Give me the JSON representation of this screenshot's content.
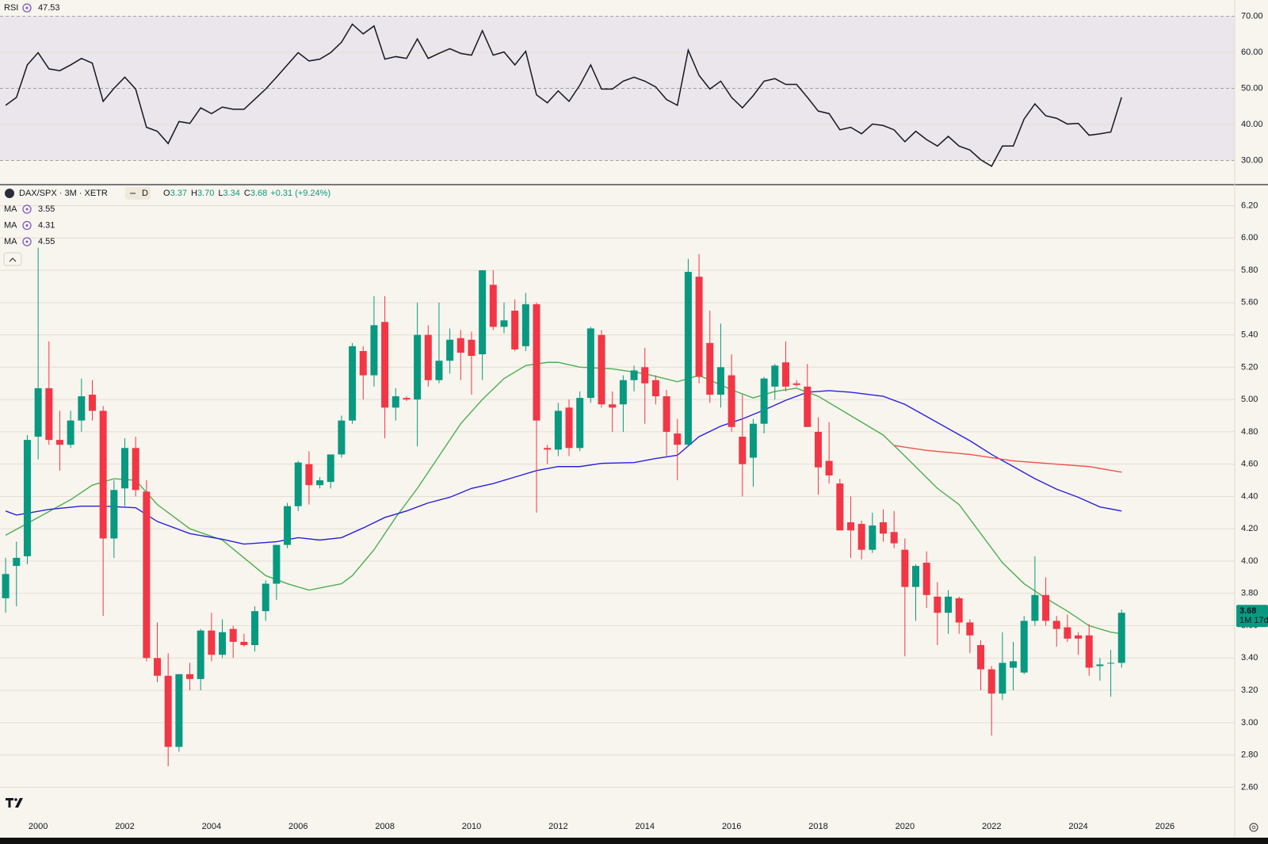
{
  "chart_data": [
    {
      "type": "line",
      "series": [
        {
          "name": "RSI",
          "color": "#131722",
          "values": [
            45.3,
            47.5,
            56.5,
            59.9,
            55.4,
            54.9,
            56.5,
            58.3,
            57,
            46.4,
            50,
            53.1,
            49.8,
            39.2,
            38.1,
            34.7,
            40.8,
            40.3,
            44.6,
            43,
            44.8,
            44.2,
            44.2,
            47,
            49.8,
            53.1,
            56.5,
            59.9,
            57.6,
            58.1,
            59.9,
            62.8,
            67.8,
            65.1,
            67.3,
            58.1,
            58.8,
            58.3,
            63.7,
            58.3,
            59.7,
            61,
            59.7,
            59.2,
            66,
            59.2,
            60.1,
            56.5,
            60.3,
            48.2,
            46,
            49.3,
            46.4,
            50.9,
            56.5,
            49.8,
            49.8,
            52,
            53.1,
            52,
            50.4,
            46.9,
            45.3,
            60.6,
            53.6,
            49.8,
            52,
            47.5,
            44.6,
            48,
            52,
            52.7,
            51.1,
            51.1,
            47.5,
            43.7,
            43,
            38.5,
            39.2,
            37.4,
            40.1,
            39.7,
            38.5,
            35.2,
            38.1,
            35.8,
            34,
            36.7,
            34,
            32.9,
            30.2,
            28.4,
            34,
            34,
            41.5,
            45.7,
            42.4,
            41.7,
            40.1,
            40.3,
            37,
            37.4,
            37.9,
            47.53
          ]
        }
      ],
      "x": [
        1999.25,
        1999.5,
        1999.75,
        2000,
        2000.25,
        2000.5,
        2000.75,
        2001,
        2001.25,
        2001.5,
        2001.75,
        2002,
        2002.25,
        2002.5,
        2002.75,
        2003,
        2003.25,
        2003.5,
        2003.75,
        2004,
        2004.25,
        2004.5,
        2004.75,
        2005,
        2005.25,
        2005.5,
        2005.75,
        2006,
        2006.25,
        2006.5,
        2006.75,
        2007,
        2007.25,
        2007.5,
        2007.75,
        2008,
        2008.25,
        2008.5,
        2008.75,
        2009,
        2009.25,
        2009.5,
        2009.75,
        2010,
        2010.25,
        2010.5,
        2010.75,
        2011,
        2011.25,
        2011.5,
        2011.75,
        2012,
        2012.25,
        2012.5,
        2012.75,
        2013,
        2013.25,
        2013.5,
        2013.75,
        2014,
        2014.25,
        2014.5,
        2014.75,
        2015,
        2015.25,
        2015.5,
        2015.75,
        2016,
        2016.25,
        2016.5,
        2016.75,
        2017,
        2017.25,
        2017.5,
        2017.75,
        2018,
        2018.25,
        2018.5,
        2018.75,
        2019,
        2019.25,
        2019.5,
        2019.75,
        2020,
        2020.25,
        2020.5,
        2020.75,
        2021,
        2021.25,
        2021.5,
        2021.75,
        2022,
        2022.25,
        2022.5,
        2022.75,
        2023,
        2023.25,
        2023.5,
        2023.75,
        2024,
        2024.25,
        2024.5,
        2024.75,
        2025
      ],
      "xlim": [
        1999.12,
        2027.61
      ],
      "ylim": [
        23.3,
        74.5
      ],
      "yticks": [
        {
          "value": 30,
          "label": "30.00"
        },
        {
          "value": 40,
          "label": "40.00"
        },
        {
          "value": 50,
          "label": "50.00"
        },
        {
          "value": 60,
          "label": "60.00"
        },
        {
          "value": 70,
          "label": "70.00"
        }
      ],
      "band": [
        30,
        70
      ],
      "band_color": "#ebe5ec",
      "grid": true
    },
    {
      "type": "candlestick",
      "title": "DAX/SPX · 3M · XETR",
      "badge": "D",
      "last_labels": [
        {
          "letter": "O",
          "value": "3.37"
        },
        {
          "letter": "H",
          "value": "3.70"
        },
        {
          "letter": "L",
          "value": "3.34"
        },
        {
          "letter": "C",
          "value": "3.68"
        }
      ],
      "change": "+0.31 (+9.24%)",
      "countdown": "1M 17d",
      "up_color": "#089981",
      "down_color": "#f23645",
      "x": [
        1999.25,
        1999.5,
        1999.75,
        2000,
        2000.25,
        2000.5,
        2000.75,
        2001,
        2001.25,
        2001.5,
        2001.75,
        2002,
        2002.25,
        2002.5,
        2002.75,
        2003,
        2003.25,
        2003.5,
        2003.75,
        2004,
        2004.25,
        2004.5,
        2004.75,
        2005,
        2005.25,
        2005.5,
        2005.75,
        2006,
        2006.25,
        2006.5,
        2006.75,
        2007,
        2007.25,
        2007.5,
        2007.75,
        2008,
        2008.25,
        2008.5,
        2008.75,
        2009,
        2009.25,
        2009.5,
        2009.75,
        2010,
        2010.25,
        2010.5,
        2010.75,
        2011,
        2011.25,
        2011.5,
        2011.75,
        2012,
        2012.25,
        2012.5,
        2012.75,
        2013,
        2013.25,
        2013.5,
        2013.75,
        2014,
        2014.25,
        2014.5,
        2014.75,
        2015,
        2015.25,
        2015.5,
        2015.75,
        2016,
        2016.25,
        2016.5,
        2016.75,
        2017,
        2017.25,
        2017.5,
        2017.75,
        2018,
        2018.25,
        2018.5,
        2018.75,
        2019,
        2019.25,
        2019.5,
        2019.75,
        2020,
        2020.25,
        2020.5,
        2020.75,
        2021,
        2021.25,
        2021.5,
        2021.75,
        2022,
        2022.25,
        2022.5,
        2022.75,
        2023,
        2023.25,
        2023.5,
        2023.75,
        2024,
        2024.25,
        2024.5,
        2024.75,
        2025
      ],
      "open": [
        3.77,
        3.97,
        4.03,
        4.77,
        5.07,
        4.75,
        4.72,
        4.87,
        5.03,
        4.93,
        4.14,
        4.45,
        4.7,
        4.43,
        3.4,
        3.29,
        2.85,
        3.3,
        3.27,
        3.57,
        3.42,
        3.58,
        3.5,
        3.48,
        3.69,
        3.86,
        4.1,
        4.34,
        4.6,
        4.47,
        4.49,
        4.66,
        4.87,
        5.3,
        5.15,
        5.48,
        4.95,
        5.01,
        5.0,
        5.4,
        5.12,
        5.24,
        5.38,
        5.37,
        5.28,
        5.71,
        5.45,
        5.55,
        5.33,
        5.59,
        4.7,
        4.69,
        4.95,
        4.7,
        5.01,
        5.4,
        4.97,
        4.97,
        5.12,
        5.2,
        5.12,
        5.02,
        4.79,
        4.72,
        5.76,
        5.35,
        5.03,
        5.15,
        4.77,
        4.64,
        4.85,
        5.08,
        5.23,
        5.1,
        5.08,
        4.8,
        4.62,
        4.48,
        4.24,
        4.23,
        4.07,
        4.24,
        4.18,
        4.07,
        3.84,
        3.99,
        3.78,
        3.68,
        3.77,
        3.62,
        3.48,
        3.33,
        3.18,
        3.34,
        3.31,
        3.63,
        3.79,
        3.63,
        3.59,
        3.54,
        3.54,
        3.35,
        3.37,
        3.37
      ],
      "high": [
        4.02,
        4.12,
        4.78,
        5.94,
        5.36,
        4.93,
        4.93,
        5.13,
        5.12,
        4.96,
        4.5,
        4.76,
        4.77,
        4.5,
        3.62,
        3.43,
        3.3,
        3.37,
        3.58,
        3.68,
        3.64,
        3.6,
        3.55,
        3.72,
        3.88,
        4.1,
        4.36,
        4.62,
        4.68,
        4.52,
        4.66,
        4.9,
        5.35,
        5.33,
        5.64,
        5.64,
        5.07,
        5.02,
        5.6,
        5.46,
        5.6,
        5.44,
        5.43,
        5.42,
        5.8,
        5.8,
        5.6,
        5.62,
        5.66,
        5.6,
        4.72,
        4.98,
        5.0,
        5.05,
        5.45,
        5.43,
        5.05,
        5.15,
        5.21,
        5.32,
        5.15,
        5.06,
        4.88,
        5.87,
        5.9,
        5.55,
        5.47,
        5.28,
        5.03,
        4.88,
        5.14,
        5.22,
        5.36,
        5.12,
        5.22,
        4.89,
        4.86,
        4.51,
        4.4,
        4.25,
        4.3,
        4.32,
        4.31,
        4.14,
        3.98,
        4.06,
        3.87,
        3.82,
        3.78,
        3.64,
        3.51,
        3.35,
        3.56,
        3.5,
        3.66,
        4.03,
        3.9,
        3.66,
        3.67,
        3.56,
        3.61,
        3.4,
        3.45,
        3.7
      ],
      "low": [
        3.68,
        3.72,
        3.98,
        4.63,
        4.72,
        4.56,
        4.7,
        4.8,
        4.87,
        3.66,
        4.02,
        4.34,
        4.4,
        3.38,
        3.25,
        2.73,
        2.82,
        3.2,
        3.2,
        3.38,
        3.4,
        3.4,
        3.47,
        3.44,
        3.63,
        3.76,
        4.08,
        4.31,
        4.35,
        4.45,
        4.45,
        4.64,
        4.85,
        5.0,
        5.08,
        4.76,
        4.87,
        4.99,
        4.71,
        5.08,
        5.1,
        5.16,
        5.12,
        5.03,
        5.12,
        5.43,
        5.41,
        5.3,
        5.3,
        4.3,
        4.6,
        4.65,
        4.65,
        4.68,
        4.98,
        4.95,
        4.8,
        4.8,
        5.05,
        4.85,
        4.97,
        4.65,
        4.5,
        4.72,
        5.1,
        4.98,
        4.95,
        4.8,
        4.4,
        4.46,
        4.79,
        5.0,
        5.05,
        5.08,
        4.83,
        4.41,
        4.48,
        4.19,
        4.02,
        4.01,
        4.05,
        4.12,
        4.08,
        3.41,
        3.63,
        3.71,
        3.48,
        3.55,
        3.55,
        3.43,
        3.2,
        2.92,
        3.14,
        3.2,
        3.3,
        3.6,
        3.6,
        3.47,
        3.5,
        3.42,
        3.29,
        3.26,
        3.16,
        3.34
      ],
      "close": [
        3.92,
        4.02,
        4.75,
        5.07,
        4.75,
        4.72,
        4.87,
        5.02,
        4.93,
        4.14,
        4.44,
        4.7,
        4.44,
        3.4,
        3.29,
        2.85,
        3.3,
        3.27,
        3.57,
        3.42,
        3.56,
        3.5,
        3.48,
        3.69,
        3.86,
        4.1,
        4.34,
        4.61,
        4.47,
        4.5,
        4.66,
        4.87,
        5.33,
        5.15,
        5.46,
        4.95,
        5.02,
        5.0,
        5.4,
        5.12,
        5.24,
        5.37,
        5.29,
        5.27,
        5.8,
        5.45,
        5.49,
        5.31,
        5.59,
        4.87,
        4.69,
        4.93,
        4.7,
        5.01,
        5.44,
        4.97,
        4.95,
        5.12,
        5.18,
        5.1,
        5.02,
        4.8,
        4.72,
        5.79,
        5.14,
        5.03,
        5.2,
        4.83,
        4.6,
        4.85,
        5.13,
        5.21,
        5.08,
        5.09,
        4.83,
        4.58,
        4.53,
        4.19,
        4.19,
        4.07,
        4.22,
        4.17,
        4.11,
        3.84,
        3.97,
        3.79,
        3.68,
        3.78,
        3.62,
        3.54,
        3.33,
        3.18,
        3.37,
        3.38,
        3.63,
        3.79,
        3.63,
        3.58,
        3.52,
        3.52,
        3.34,
        3.36,
        3.37,
        3.68
      ],
      "overlays": [
        {
          "name": "MA",
          "color": "#4caf50",
          "x": [
            1999.25,
            2000,
            2000.75,
            2001.25,
            2001.75,
            2002.25,
            2002.75,
            2003.5,
            2004.25,
            2004.75,
            2005.25,
            2005.75,
            2006.25,
            2007,
            2007.25,
            2007.75,
            2008.25,
            2008.75,
            2009.25,
            2009.75,
            2010.25,
            2010.75,
            2011.25,
            2011.75,
            2012,
            2012.5,
            2013.25,
            2014,
            2014.75,
            2015.25,
            2016,
            2016.5,
            2017,
            2017.5,
            2018,
            2018.75,
            2019.5,
            2020,
            2020.75,
            2021.25,
            2021.75,
            2022.25,
            2022.75,
            2023.25,
            2023.75,
            2024.25,
            2024.75,
            2025
          ],
          "values": [
            4.16,
            4.27,
            4.38,
            4.47,
            4.51,
            4.5,
            4.35,
            4.2,
            4.13,
            4.02,
            3.91,
            3.86,
            3.82,
            3.86,
            3.91,
            4.07,
            4.27,
            4.45,
            4.65,
            4.85,
            5.0,
            5.13,
            5.21,
            5.23,
            5.23,
            5.2,
            5.19,
            5.16,
            5.11,
            5.15,
            5.06,
            5.01,
            5.05,
            5.07,
            5.02,
            4.9,
            4.78,
            4.65,
            4.45,
            4.35,
            4.17,
            3.99,
            3.86,
            3.77,
            3.69,
            3.6,
            3.56,
            3.55
          ]
        },
        {
          "name": "MA",
          "color": "#2a1fe0",
          "x": [
            1999.25,
            1999.5,
            2000.25,
            2001,
            2001.5,
            2002.25,
            2002.75,
            2003.5,
            2004.25,
            2004.75,
            2005.5,
            2006,
            2006.5,
            2007,
            2007.5,
            2008,
            2008.5,
            2009,
            2009.5,
            2010,
            2010.5,
            2011,
            2011.5,
            2012,
            2012.5,
            2013,
            2013.75,
            2014.25,
            2014.75,
            2015.25,
            2015.75,
            2016.25,
            2016.75,
            2017.25,
            2017.75,
            2018.25,
            2018.75,
            2019.5,
            2020,
            2020.5,
            2021,
            2021.5,
            2022,
            2022.5,
            2023,
            2023.5,
            2024,
            2024.5,
            2025
          ],
          "values": [
            4.31,
            4.285,
            4.32,
            4.34,
            4.34,
            4.33,
            4.245,
            4.17,
            4.135,
            4.105,
            4.12,
            4.145,
            4.13,
            4.145,
            4.205,
            4.27,
            4.31,
            4.36,
            4.395,
            4.45,
            4.48,
            4.52,
            4.56,
            4.585,
            4.585,
            4.605,
            4.61,
            4.635,
            4.655,
            4.77,
            4.835,
            4.88,
            4.935,
            4.995,
            5.045,
            5.055,
            5.045,
            5.02,
            4.97,
            4.895,
            4.82,
            4.745,
            4.66,
            4.585,
            4.51,
            4.445,
            4.395,
            4.335,
            4.31
          ]
        },
        {
          "name": "MA",
          "color": "#f0504a",
          "x": [
            2019.75,
            2020.5,
            2021.5,
            2022.5,
            2023.5,
            2024.25,
            2025
          ],
          "values": [
            4.715,
            4.685,
            4.66,
            4.62,
            4.6,
            4.585,
            4.55
          ]
        }
      ],
      "xlim": [
        1999.12,
        2027.61
      ],
      "ylim": [
        2.445,
        6.33
      ],
      "yticks": [
        {
          "value": 2.6,
          "label": "2.60"
        },
        {
          "value": 2.8,
          "label": "2.80"
        },
        {
          "value": 3.0,
          "label": "3.00"
        },
        {
          "value": 3.2,
          "label": "3.20"
        },
        {
          "value": 3.4,
          "label": "3.40"
        },
        {
          "value": 3.6,
          "label": "3.60"
        },
        {
          "value": 3.8,
          "label": "3.80"
        },
        {
          "value": 4.0,
          "label": "4.00"
        },
        {
          "value": 4.2,
          "label": "4.20"
        },
        {
          "value": 4.4,
          "label": "4.40"
        },
        {
          "value": 4.6,
          "label": "4.60"
        },
        {
          "value": 4.8,
          "label": "4.80"
        },
        {
          "value": 5.0,
          "label": "5.00"
        },
        {
          "value": 5.2,
          "label": "5.20"
        },
        {
          "value": 5.4,
          "label": "5.40"
        },
        {
          "value": 5.6,
          "label": "5.60"
        },
        {
          "value": 5.8,
          "label": "5.80"
        },
        {
          "value": 6.0,
          "label": "6.00"
        },
        {
          "value": 6.2,
          "label": "6.20"
        }
      ],
      "xticks": [
        2000,
        2002,
        2004,
        2006,
        2008,
        2010,
        2012,
        2014,
        2016,
        2018,
        2020,
        2022,
        2024,
        2026
      ],
      "grid": true
    }
  ]
}
